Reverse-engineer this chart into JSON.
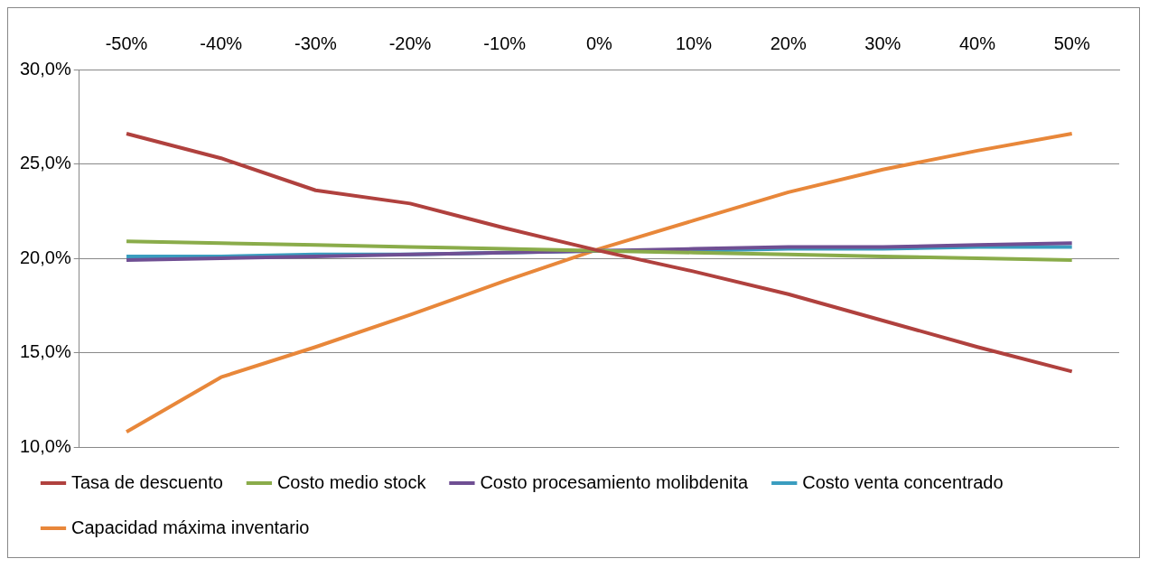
{
  "chart_data": {
    "type": "line",
    "categories": [
      "-50%",
      "-40%",
      "-30%",
      "-20%",
      "-10%",
      "0%",
      "10%",
      "20%",
      "30%",
      "40%",
      "50%"
    ],
    "series": [
      {
        "name": "Tasa de descuento",
        "color": "#b0413e",
        "values": [
          26.6,
          25.3,
          23.6,
          22.9,
          21.6,
          20.4,
          19.3,
          18.1,
          16.7,
          15.3,
          14.0
        ]
      },
      {
        "name": "Costo medio stock",
        "color": "#8aac4a",
        "values": [
          20.9,
          20.8,
          20.7,
          20.6,
          20.5,
          20.4,
          20.3,
          20.2,
          20.1,
          20.0,
          19.9
        ]
      },
      {
        "name": "Costo procesamiento molibdenita",
        "color": "#6f4f93",
        "values": [
          19.9,
          20.0,
          20.1,
          20.2,
          20.3,
          20.4,
          20.5,
          20.6,
          20.6,
          20.7,
          20.8
        ]
      },
      {
        "name": "Costo venta concentrado",
        "color": "#3a9dbf",
        "values": [
          20.1,
          20.1,
          20.2,
          20.2,
          20.3,
          20.4,
          20.4,
          20.5,
          20.5,
          20.6,
          20.6
        ]
      },
      {
        "name": "Capacidad máxima inventario",
        "color": "#e8873a",
        "values": [
          10.8,
          13.7,
          15.3,
          17.0,
          18.8,
          20.5,
          22.0,
          23.5,
          24.7,
          25.7,
          26.6
        ]
      }
    ],
    "ylim": [
      10,
      30
    ],
    "yticks": [
      {
        "value": 10,
        "label": "10,0%"
      },
      {
        "value": 15,
        "label": "15,0%"
      },
      {
        "value": 20,
        "label": "20,0%"
      },
      {
        "value": 25,
        "label": "25,0%"
      },
      {
        "value": 30,
        "label": "30,0%"
      }
    ],
    "grid": "y",
    "legend": "bottom",
    "marker": "none",
    "line_style": "solid"
  }
}
